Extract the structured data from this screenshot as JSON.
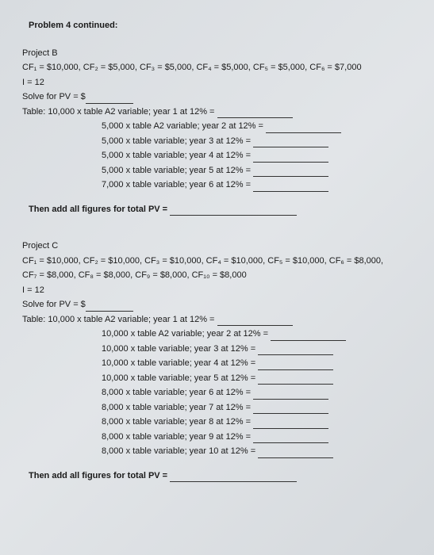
{
  "title": "Problem 4 continued:",
  "projectB": {
    "header": "Project B",
    "cf": "CF₁ = $10,000, CF₂ = $5,000, CF₃ = $5,000, CF₄ = $5,000, CF₅ = $5,000, CF₆ = $7,000",
    "i": "I = 12",
    "solve": "Solve for PV = $",
    "tablePrefix": "Table:  ",
    "rows": [
      "10,000 x table A2 variable; year 1 at 12% =",
      "5,000 x table A2 variable; year 2 at 12% =",
      "5,000 x table variable; year 3 at 12% =",
      "5,000 x table variable; year 4 at 12% =",
      "5,000 x table variable; year 5 at 12% =",
      "7,000 x table variable; year 6 at 12% ="
    ],
    "total": "Then add all figures for total PV ="
  },
  "projectC": {
    "header": "Project C",
    "cf1": "CF₁ = $10,000, CF₂ = $10,000, CF₃ = $10,000, CF₄ = $10,000, CF₅ = $10,000, CF₆ = $8,000,",
    "cf2": "CF₇ = $8,000, CF₈ = $8,000, CF₉ = $8,000, CF₁₀ = $8,000",
    "i": "I = 12",
    "solve": "Solve for PV = $",
    "tablePrefix": "Table:  ",
    "rows": [
      "10,000 x table A2 variable; year 1 at 12% =",
      "10,000 x table A2 variable; year 2 at 12% =",
      "10,000 x table variable; year 3 at 12% =",
      "10,000 x table variable; year 4 at 12% =",
      "10,000 x table variable; year 5 at 12% =",
      "8,000 x table variable; year 6 at 12% =",
      "8,000 x table variable; year 7 at 12% =",
      "8,000 x table variable; year 8 at 12% =",
      "8,000 x table variable; year 9 at 12% =",
      "8,000 x table variable; year 10 at 12% ="
    ],
    "total": "Then add all figures for total PV ="
  }
}
